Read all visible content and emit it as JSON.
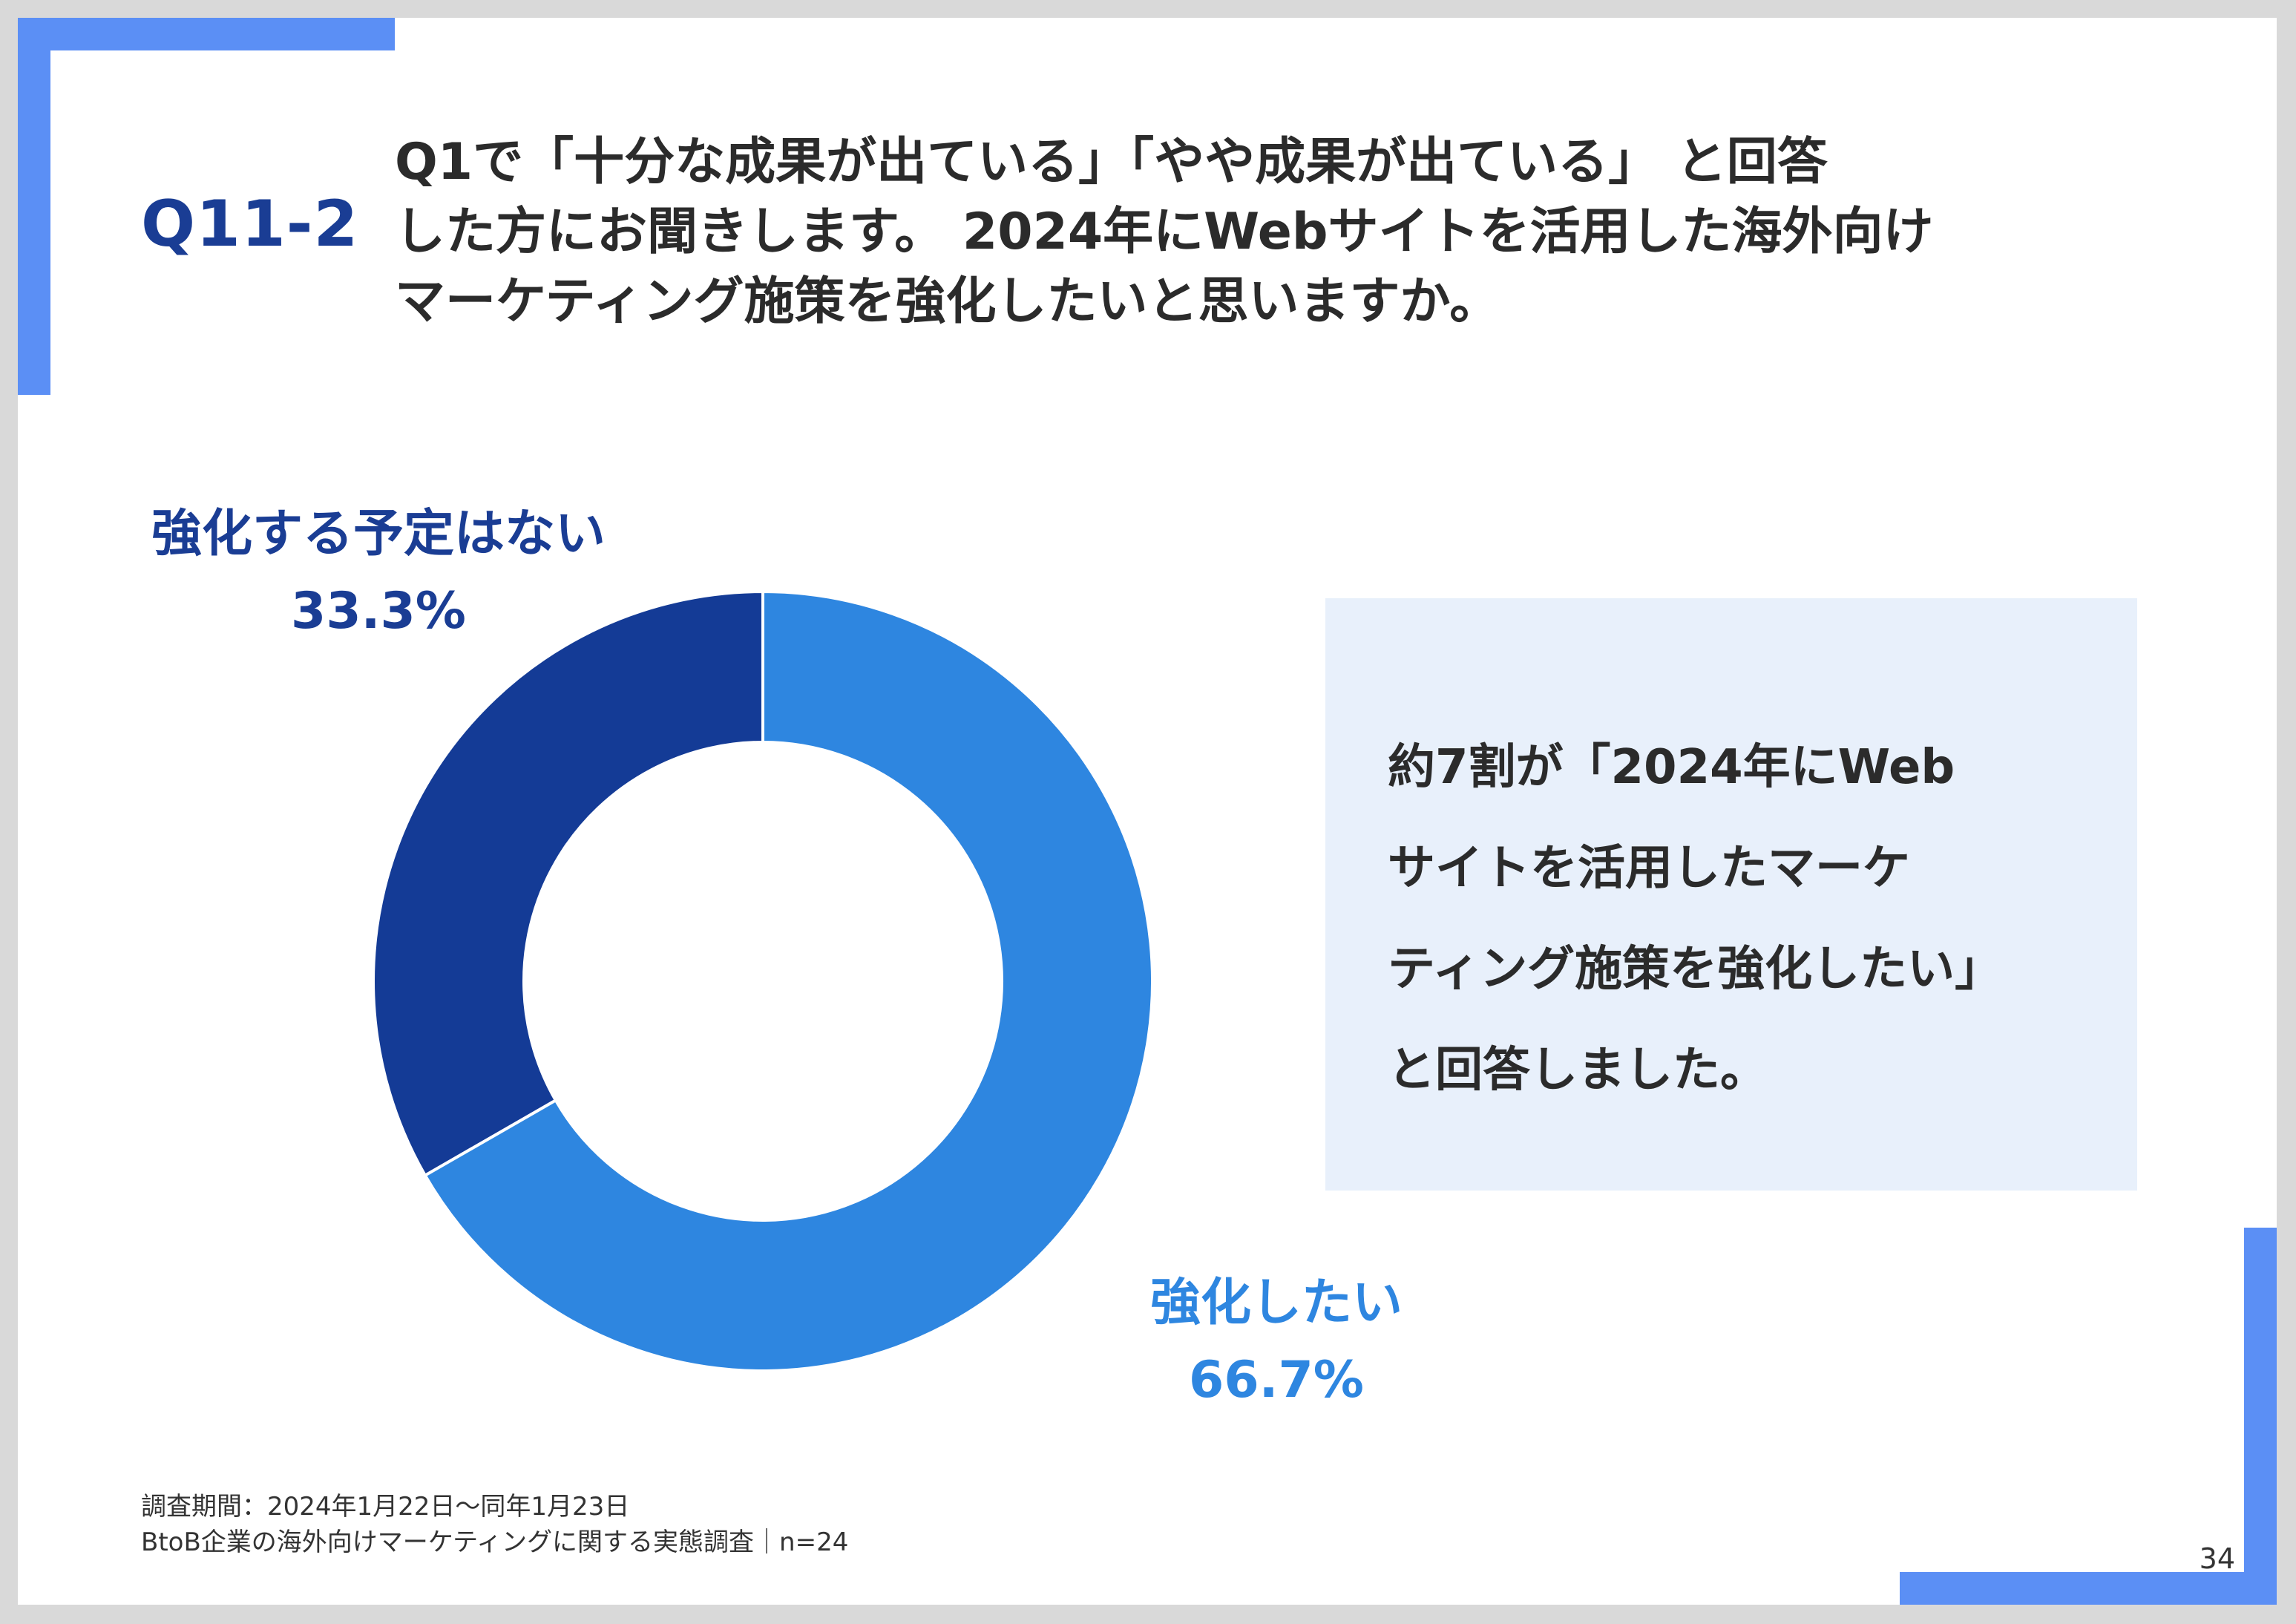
{
  "header": {
    "question_id": "Q11-2",
    "question_lines": [
      "Q1で「十分な成果が出ている」「やや成果が出ている」 と回答",
      "した方にお聞きします。 2024年にWebサイトを活用した海外向け",
      "マーケティング施策を強化したいと思いますか。"
    ]
  },
  "chart_data": {
    "type": "pie",
    "donut": true,
    "slices": [
      {
        "label": "強化したい",
        "value": 66.7,
        "value_label": "66.7%",
        "color": "#2e86e0"
      },
      {
        "label": "強化する予定はない",
        "value": 33.3,
        "value_label": "33.3%",
        "color": "#143b96"
      }
    ],
    "start_angle": "12 o'clock",
    "direction": "clockwise"
  },
  "summary": {
    "lines": [
      "約7割が「2024年にWeb",
      "サイトを活用したマーケ",
      "ティング施策を強化したい」",
      "と回答しました。"
    ]
  },
  "footer": {
    "survey_period": "調査期間：2024年1月22日〜同年1月23日",
    "survey_name": "BtoB企業の海外向けマーケティングに関する実態調査｜n=24",
    "page_number": "34"
  },
  "colors": {
    "accent": "#5b8ff5",
    "title_blue": "#1a3d94",
    "summary_bg": "#e8f0fb"
  }
}
